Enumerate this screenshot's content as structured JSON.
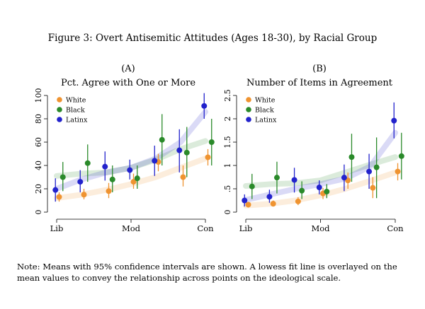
{
  "figure": {
    "title": "Figure 3: Overt Antisemitic Attitudes (Ages 18-30), by Racial Group",
    "note": "Note: Means with 95% confidence intervals are shown. A lowess fit line is overlayed on the mean values to convey the relationship across points on the ideological scale."
  },
  "colors": {
    "White": "#ef9330",
    "Black": "#2a8a2a",
    "Latinx": "#2222cc"
  },
  "chart_data": [
    {
      "type": "scatter",
      "panel": "(A)",
      "title": "Pct. Agree with One or More",
      "xlabel": "",
      "ylabel": "",
      "x_ticks": [
        "Lib",
        "Mod",
        "Con"
      ],
      "x_range": [
        1,
        7
      ],
      "ylim": [
        0,
        100
      ],
      "y_ticks": [
        "0",
        "20",
        "40",
        "60",
        "80",
        "100"
      ],
      "y_tick_values": [
        0,
        20,
        40,
        60,
        80,
        100
      ],
      "legend": [
        "White",
        "Black",
        "Latinx"
      ],
      "legend_position": "top-left",
      "series": [
        {
          "name": "White",
          "points": [
            {
              "x": 1.1,
              "y": 13,
              "lo": 9,
              "hi": 17
            },
            {
              "x": 2.1,
              "y": 15,
              "lo": 11,
              "hi": 20
            },
            {
              "x": 3.1,
              "y": 18,
              "lo": 12,
              "hi": 25
            },
            {
              "x": 4.1,
              "y": 26,
              "lo": 20,
              "hi": 33
            },
            {
              "x": 5.1,
              "y": 43,
              "lo": 35,
              "hi": 50
            },
            {
              "x": 6.1,
              "y": 30,
              "lo": 22,
              "hi": 40
            },
            {
              "x": 7.1,
              "y": 47,
              "lo": 40,
              "hi": 54
            }
          ],
          "lowess": [
            [
              1,
              12
            ],
            [
              2,
              15
            ],
            [
              3,
              19
            ],
            [
              4,
              24
            ],
            [
              5,
              30
            ],
            [
              6,
              38
            ],
            [
              7,
              46
            ]
          ]
        },
        {
          "name": "Black",
          "points": [
            {
              "x": 1.25,
              "y": 30,
              "lo": 18,
              "hi": 43
            },
            {
              "x": 2.25,
              "y": 42,
              "lo": 26,
              "hi": 58
            },
            {
              "x": 3.25,
              "y": 28,
              "lo": 17,
              "hi": 40
            },
            {
              "x": 4.25,
              "y": 29,
              "lo": 20,
              "hi": 40
            },
            {
              "x": 5.25,
              "y": 62,
              "lo": 40,
              "hi": 84
            },
            {
              "x": 6.25,
              "y": 51,
              "lo": 30,
              "hi": 73
            },
            {
              "x": 7.25,
              "y": 60,
              "lo": 40,
              "hi": 80
            }
          ],
          "lowess": [
            [
              1,
              31
            ],
            [
              2,
              33
            ],
            [
              3,
              34
            ],
            [
              4,
              38
            ],
            [
              5,
              45
            ],
            [
              6,
              54
            ],
            [
              7,
              61
            ]
          ]
        },
        {
          "name": "Latinx",
          "points": [
            {
              "x": 0.95,
              "y": 19,
              "lo": 9,
              "hi": 29
            },
            {
              "x": 1.95,
              "y": 26,
              "lo": 17,
              "hi": 36
            },
            {
              "x": 2.95,
              "y": 39,
              "lo": 27,
              "hi": 52
            },
            {
              "x": 3.95,
              "y": 36,
              "lo": 28,
              "hi": 45
            },
            {
              "x": 4.95,
              "y": 44,
              "lo": 31,
              "hi": 57
            },
            {
              "x": 5.95,
              "y": 53,
              "lo": 34,
              "hi": 71
            },
            {
              "x": 6.95,
              "y": 91,
              "lo": 80,
              "hi": 102
            }
          ],
          "lowess": [
            [
              1,
              20
            ],
            [
              2,
              28
            ],
            [
              3,
              34
            ],
            [
              4,
              38
            ],
            [
              5,
              46
            ],
            [
              6,
              60
            ],
            [
              7,
              86
            ]
          ]
        }
      ]
    },
    {
      "type": "scatter",
      "panel": "(B)",
      "title": "Number of Items in Agreement",
      "xlabel": "",
      "ylabel": "",
      "x_ticks": [
        "Lib",
        "Mod",
        "Con"
      ],
      "x_range": [
        1,
        7
      ],
      "ylim": [
        0,
        2.5
      ],
      "y_ticks": [
        "0",
        ".5",
        "1",
        "1.5",
        "2",
        "2.5"
      ],
      "y_tick_values": [
        0,
        0.5,
        1,
        1.5,
        2,
        2.5
      ],
      "legend": [
        "White",
        "Black",
        "Latinx"
      ],
      "legend_position": "top-left",
      "series": [
        {
          "name": "White",
          "points": [
            {
              "x": 1.1,
              "y": 0.16,
              "lo": 0.1,
              "hi": 0.22
            },
            {
              "x": 2.1,
              "y": 0.18,
              "lo": 0.12,
              "hi": 0.25
            },
            {
              "x": 3.1,
              "y": 0.23,
              "lo": 0.15,
              "hi": 0.32
            },
            {
              "x": 4.1,
              "y": 0.4,
              "lo": 0.28,
              "hi": 0.52
            },
            {
              "x": 5.1,
              "y": 0.68,
              "lo": 0.5,
              "hi": 0.85
            },
            {
              "x": 6.1,
              "y": 0.52,
              "lo": 0.3,
              "hi": 0.75
            },
            {
              "x": 7.1,
              "y": 0.87,
              "lo": 0.68,
              "hi": 1.05
            }
          ],
          "lowess": [
            [
              1,
              0.14
            ],
            [
              2,
              0.18
            ],
            [
              3,
              0.25
            ],
            [
              4,
              0.36
            ],
            [
              5,
              0.5
            ],
            [
              6,
              0.67
            ],
            [
              7,
              0.85
            ]
          ]
        },
        {
          "name": "Black",
          "points": [
            {
              "x": 1.25,
              "y": 0.55,
              "lo": 0.28,
              "hi": 0.82
            },
            {
              "x": 2.25,
              "y": 0.74,
              "lo": 0.4,
              "hi": 1.08
            },
            {
              "x": 3.25,
              "y": 0.46,
              "lo": 0.28,
              "hi": 0.66
            },
            {
              "x": 4.25,
              "y": 0.44,
              "lo": 0.3,
              "hi": 0.6
            },
            {
              "x": 5.25,
              "y": 1.18,
              "lo": 0.65,
              "hi": 1.68
            },
            {
              "x": 6.25,
              "y": 0.96,
              "lo": 0.3,
              "hi": 1.6
            },
            {
              "x": 7.25,
              "y": 1.2,
              "lo": 0.7,
              "hi": 1.7
            }
          ],
          "lowess": [
            [
              1,
              0.56
            ],
            [
              2,
              0.6
            ],
            [
              3,
              0.62
            ],
            [
              4,
              0.68
            ],
            [
              5,
              0.85
            ],
            [
              6,
              1.02
            ],
            [
              7,
              1.18
            ]
          ]
        },
        {
          "name": "Latinx",
          "points": [
            {
              "x": 0.95,
              "y": 0.25,
              "lo": 0.12,
              "hi": 0.38
            },
            {
              "x": 1.95,
              "y": 0.33,
              "lo": 0.2,
              "hi": 0.48
            },
            {
              "x": 2.95,
              "y": 0.69,
              "lo": 0.42,
              "hi": 0.95
            },
            {
              "x": 3.95,
              "y": 0.53,
              "lo": 0.38,
              "hi": 0.68
            },
            {
              "x": 4.95,
              "y": 0.74,
              "lo": 0.45,
              "hi": 1.02
            },
            {
              "x": 5.95,
              "y": 0.87,
              "lo": 0.5,
              "hi": 1.25
            },
            {
              "x": 6.95,
              "y": 1.96,
              "lo": 1.58,
              "hi": 2.35
            }
          ],
          "lowess": [
            [
              1,
              0.26
            ],
            [
              2,
              0.38
            ],
            [
              3,
              0.5
            ],
            [
              4,
              0.6
            ],
            [
              5,
              0.72
            ],
            [
              6,
              0.98
            ],
            [
              7,
              1.7
            ]
          ]
        }
      ]
    }
  ]
}
